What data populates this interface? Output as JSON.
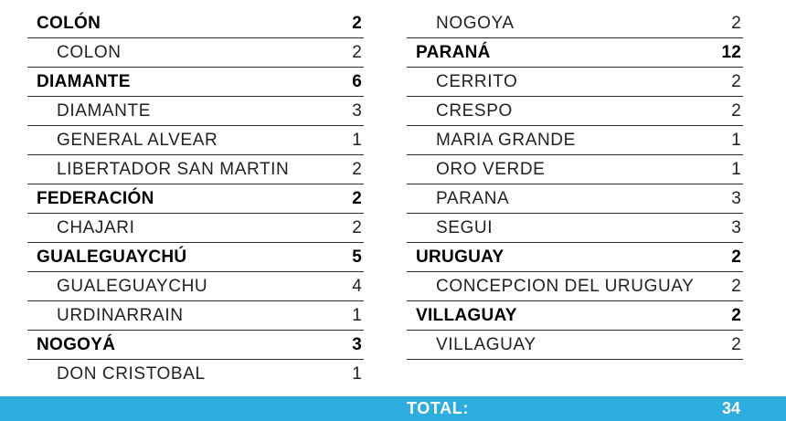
{
  "left_column": [
    {
      "type": "group",
      "name": "COLÓN",
      "value": "2"
    },
    {
      "type": "sub",
      "name": "COLON",
      "value": "2"
    },
    {
      "type": "group",
      "name": "DIAMANTE",
      "value": "6"
    },
    {
      "type": "sub",
      "name": "DIAMANTE",
      "value": "3"
    },
    {
      "type": "sub",
      "name": "GENERAL ALVEAR",
      "value": "1"
    },
    {
      "type": "sub",
      "name": "LIBERTADOR SAN MARTIN",
      "value": "2"
    },
    {
      "type": "group",
      "name": "FEDERACIÓN",
      "value": "2"
    },
    {
      "type": "sub",
      "name": "CHAJARI",
      "value": "2"
    },
    {
      "type": "group",
      "name": "GUALEGUAYCHÚ",
      "value": "5"
    },
    {
      "type": "sub",
      "name": "GUALEGUAYCHU",
      "value": "4"
    },
    {
      "type": "sub",
      "name": "URDINARRAIN",
      "value": "1"
    },
    {
      "type": "group",
      "name": "NOGOYÁ",
      "value": "3"
    },
    {
      "type": "sub",
      "name": "DON CRISTOBAL",
      "value": "1"
    }
  ],
  "right_column": [
    {
      "type": "sub",
      "name": "NOGOYA",
      "value": "2"
    },
    {
      "type": "group",
      "name": "PARANÁ",
      "value": "12"
    },
    {
      "type": "sub",
      "name": "CERRITO",
      "value": "2"
    },
    {
      "type": "sub",
      "name": "CRESPO",
      "value": "2"
    },
    {
      "type": "sub",
      "name": "MARIA GRANDE",
      "value": "1"
    },
    {
      "type": "sub",
      "name": "ORO VERDE",
      "value": "1"
    },
    {
      "type": "sub",
      "name": "PARANA",
      "value": "3"
    },
    {
      "type": "sub",
      "name": "SEGUI",
      "value": "3"
    },
    {
      "type": "group",
      "name": "URUGUAY",
      "value": "2"
    },
    {
      "type": "sub",
      "name": "CONCEPCION DEL URUGUAY",
      "value": "2"
    },
    {
      "type": "group",
      "name": "VILLAGUAY",
      "value": "2"
    },
    {
      "type": "sub",
      "name": "VILLAGUAY",
      "value": "2"
    }
  ],
  "footer": {
    "total_label": "TOTAL:",
    "total_value": "34",
    "bar_color": "#2eaee0"
  }
}
